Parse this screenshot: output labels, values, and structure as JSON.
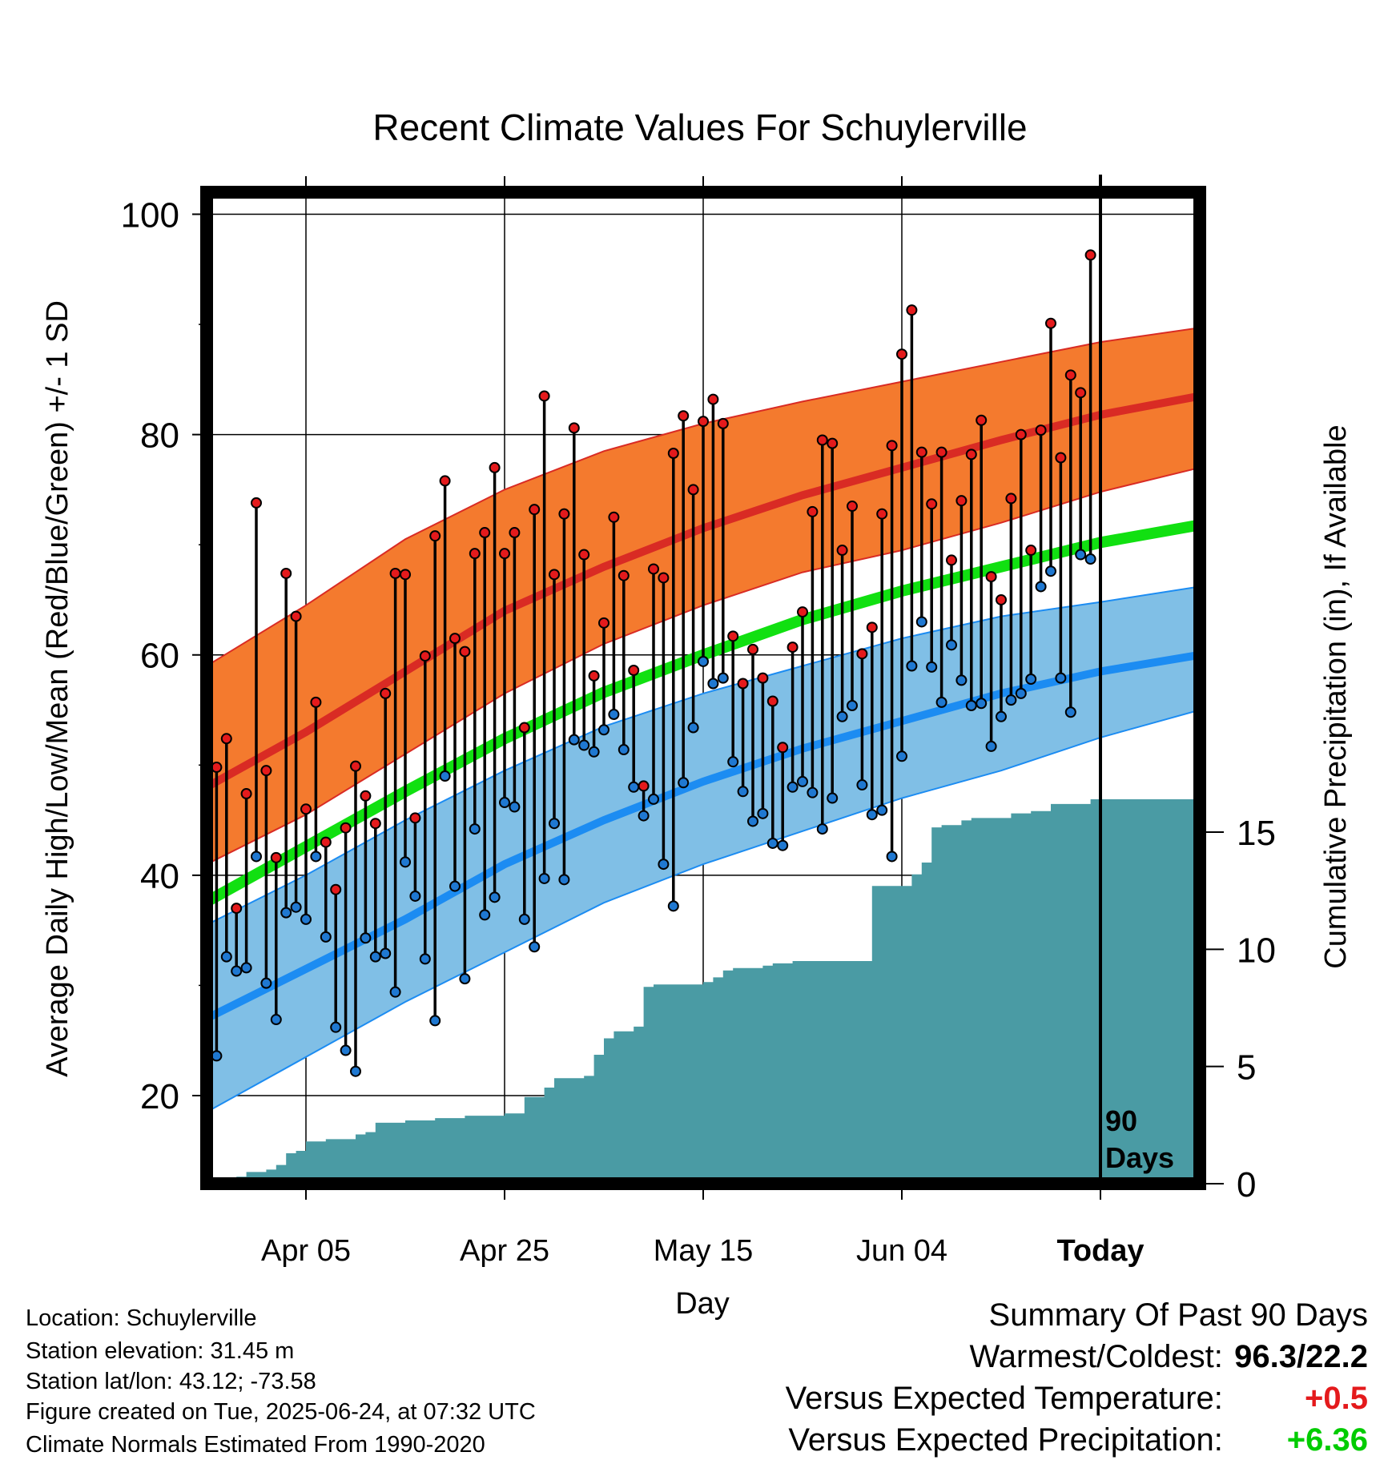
{
  "chart_data": {
    "type": "line",
    "title": "Recent Climate Values For Schuylerville",
    "xlabel": "Day",
    "ylabel": "Average Daily High/Low/Mean (Red/Blue/Green) +/- 1 SD",
    "ylabel_right": "Cumulative Precipitation (in), If Available",
    "x_tick_labels": [
      "Apr 05",
      "Apr 25",
      "May 15",
      "Jun 04",
      "Today"
    ],
    "x_tick_days": [
      10,
      30,
      50,
      70,
      90
    ],
    "xlim": [
      0,
      100
    ],
    "y_tick_labels": [
      "20",
      "40",
      "60",
      "80",
      "100"
    ],
    "y_ticks": [
      20,
      40,
      60,
      80,
      100
    ],
    "ylim": [
      12,
      102
    ],
    "y2_tick_labels": [
      "0",
      "5",
      "10",
      "15"
    ],
    "y2_ticks": [
      0,
      5,
      10,
      15
    ],
    "y2lim": [
      0,
      42.3
    ],
    "today_day": 90,
    "today_label": [
      "90",
      "Days"
    ],
    "grid": true,
    "normals": {
      "day": [
        0,
        10,
        20,
        30,
        40,
        50,
        60,
        70,
        80,
        90,
        100
      ],
      "high_mean": [
        48.0,
        53.0,
        58.5,
        64.0,
        68.0,
        71.5,
        74.5,
        77.0,
        79.5,
        81.8,
        83.5
      ],
      "high_upper": [
        59.0,
        64.5,
        70.5,
        75.0,
        78.5,
        81.0,
        83.0,
        84.8,
        86.6,
        88.4,
        89.7
      ],
      "high_lower": [
        41.0,
        45.5,
        51.0,
        56.5,
        61.0,
        64.5,
        67.5,
        69.5,
        72.0,
        74.8,
        77.0
      ],
      "mean": [
        37.6,
        42.6,
        47.6,
        52.4,
        56.6,
        60.0,
        63.2,
        65.8,
        68.0,
        70.2,
        71.8
      ],
      "low_mean": [
        27.0,
        31.5,
        36.0,
        41.0,
        45.0,
        48.5,
        51.5,
        54.0,
        56.5,
        58.5,
        60.0
      ],
      "low_upper": [
        35.5,
        40.0,
        45.0,
        49.5,
        53.5,
        56.5,
        59.0,
        61.5,
        63.5,
        64.8,
        66.2
      ],
      "low_lower": [
        18.5,
        23.5,
        28.5,
        33.0,
        37.5,
        41.0,
        44.0,
        47.0,
        49.5,
        52.5,
        55.0
      ]
    },
    "series": [
      {
        "name": "High",
        "color": "#e41a1c",
        "day": [
          0,
          1,
          2,
          3,
          4,
          5,
          6,
          7,
          8,
          9,
          10,
          11,
          12,
          13,
          14,
          15,
          16,
          17,
          18,
          19,
          20,
          21,
          22,
          23,
          24,
          25,
          26,
          27,
          28,
          29,
          30,
          31,
          32,
          33,
          34,
          35,
          36,
          37,
          38,
          39,
          40,
          41,
          42,
          43,
          44,
          45,
          46,
          47,
          48,
          49,
          50,
          51,
          52,
          53,
          54,
          55,
          56,
          57,
          58,
          59,
          60,
          61,
          62,
          63,
          64,
          65,
          66,
          67,
          68,
          69,
          70,
          71,
          72,
          73,
          74,
          75,
          76,
          77,
          78,
          79,
          80,
          81,
          82,
          83,
          84,
          85,
          86,
          87,
          88,
          89,
          90
        ],
        "values": [
          47.1,
          49.8,
          52.4,
          37.0,
          47.4,
          73.8,
          49.5,
          41.6,
          67.4,
          63.5,
          46.0,
          55.7,
          43.0,
          38.7,
          44.3,
          49.9,
          47.2,
          44.7,
          56.5,
          67.4,
          67.3,
          45.2,
          59.9,
          70.8,
          75.8,
          61.5,
          60.3,
          69.2,
          71.1,
          77.0,
          69.2,
          71.1,
          53.4,
          73.2,
          83.5,
          67.3,
          72.8,
          80.6,
          69.1,
          58.1,
          62.9,
          72.5,
          67.2,
          58.6,
          48.1,
          67.8,
          67.0,
          78.3,
          81.7,
          75.0,
          81.2,
          83.2,
          81.0,
          61.7,
          57.4,
          60.5,
          57.9,
          55.8,
          51.6,
          60.7,
          63.9,
          73.0,
          79.5,
          79.2,
          69.5,
          73.5,
          60.1,
          62.5,
          72.8,
          79.0,
          87.3,
          91.3,
          78.4,
          73.7,
          78.4,
          68.6,
          74.0,
          78.2,
          81.3,
          67.1,
          65.0,
          74.2,
          80.0,
          69.5,
          80.4,
          90.1,
          77.9,
          85.4,
          83.8,
          96.3,
          null
        ]
      },
      {
        "name": "Low",
        "color": "#1f78d1",
        "day": [
          0,
          1,
          2,
          3,
          4,
          5,
          6,
          7,
          8,
          9,
          10,
          11,
          12,
          13,
          14,
          15,
          16,
          17,
          18,
          19,
          20,
          21,
          22,
          23,
          24,
          25,
          26,
          27,
          28,
          29,
          30,
          31,
          32,
          33,
          34,
          35,
          36,
          37,
          38,
          39,
          40,
          41,
          42,
          43,
          44,
          45,
          46,
          47,
          48,
          49,
          50,
          51,
          52,
          53,
          54,
          55,
          56,
          57,
          58,
          59,
          60,
          61,
          62,
          63,
          64,
          65,
          66,
          67,
          68,
          69,
          70,
          71,
          72,
          73,
          74,
          75,
          76,
          77,
          78,
          79,
          80,
          81,
          82,
          83,
          84,
          85,
          86,
          87,
          88,
          89,
          90
        ],
        "values": [
          24.6,
          23.6,
          32.6,
          31.3,
          31.6,
          41.7,
          30.2,
          26.9,
          36.6,
          37.1,
          36.0,
          41.7,
          34.4,
          26.2,
          24.1,
          22.2,
          34.3,
          32.6,
          32.9,
          29.4,
          41.2,
          38.1,
          32.4,
          26.8,
          49.0,
          39.0,
          30.6,
          44.2,
          36.4,
          38.0,
          46.6,
          46.2,
          36.0,
          33.5,
          39.7,
          44.7,
          39.6,
          52.3,
          51.8,
          51.2,
          53.2,
          54.6,
          51.4,
          48.0,
          45.4,
          46.9,
          41.0,
          37.2,
          48.4,
          53.4,
          59.4,
          57.4,
          57.9,
          50.3,
          47.6,
          44.9,
          45.6,
          42.9,
          42.7,
          48.0,
          48.5,
          47.5,
          44.2,
          47.0,
          54.4,
          55.4,
          48.2,
          45.5,
          45.9,
          41.7,
          50.8,
          59.0,
          63.0,
          58.9,
          55.7,
          60.9,
          57.7,
          55.4,
          55.6,
          51.7,
          54.4,
          55.9,
          56.5,
          57.8,
          66.2,
          67.6,
          57.9,
          54.8,
          69.1,
          68.7,
          null
        ]
      }
    ],
    "precipitation": {
      "name": "Cumulative Precipitation",
      "color": "#4a9ba4",
      "day": [
        0,
        1,
        2,
        3,
        4,
        5,
        6,
        7,
        8,
        9,
        10,
        11,
        12,
        13,
        14,
        15,
        16,
        17,
        18,
        19,
        20,
        21,
        22,
        23,
        24,
        25,
        26,
        27,
        28,
        29,
        30,
        31,
        32,
        33,
        34,
        35,
        36,
        37,
        38,
        39,
        40,
        41,
        42,
        43,
        44,
        45,
        46,
        47,
        48,
        49,
        50,
        51,
        52,
        53,
        54,
        55,
        56,
        57,
        58,
        59,
        60,
        61,
        62,
        63,
        64,
        65,
        66,
        67,
        68,
        69,
        70,
        71,
        72,
        73,
        74,
        75,
        76,
        77,
        78,
        79,
        80,
        81,
        82,
        83,
        84,
        85,
        86,
        87,
        88,
        89,
        90,
        100
      ],
      "values": [
        0,
        0,
        0,
        0.3,
        0.5,
        0.5,
        0.6,
        0.8,
        1.3,
        1.4,
        1.8,
        1.8,
        1.9,
        1.9,
        1.9,
        2.1,
        2.2,
        2.6,
        2.6,
        2.6,
        2.7,
        2.7,
        2.7,
        2.8,
        2.8,
        2.8,
        2.9,
        2.9,
        2.9,
        2.9,
        3.0,
        3.0,
        3.7,
        3.7,
        4.1,
        4.5,
        4.5,
        4.5,
        4.6,
        5.5,
        6.2,
        6.5,
        6.5,
        6.7,
        8.4,
        8.5,
        8.5,
        8.5,
        8.5,
        8.5,
        8.6,
        8.8,
        9.1,
        9.2,
        9.2,
        9.2,
        9.3,
        9.4,
        9.4,
        9.5,
        9.5,
        9.5,
        9.5,
        9.5,
        9.5,
        9.5,
        9.5,
        12.7,
        12.7,
        12.7,
        12.7,
        13.2,
        13.7,
        15.2,
        15.3,
        15.3,
        15.5,
        15.6,
        15.6,
        15.6,
        15.6,
        15.8,
        15.8,
        15.9,
        15.9,
        16.2,
        16.2,
        16.2,
        16.2,
        16.4,
        16.4,
        16.4
      ]
    }
  },
  "footer": {
    "location": "Location: Schuylerville",
    "elevation": "Station elevation: 31.45 m",
    "latlon": "Station lat/lon: 43.12; -73.58",
    "created": "Figure created on Tue, 2025-06-24, at 07:32 UTC",
    "normals": "Climate Normals Estimated From 1990-2020"
  },
  "summary": {
    "title": "Summary Of Past 90 Days",
    "warm_cold_label": "Warmest/Coldest:",
    "warm_cold_value": "96.3/22.2",
    "temp_label": "Versus Expected Temperature:",
    "temp_value": "+0.5",
    "temp_color": "#e41a1c",
    "precip_label": "Versus Expected Precipitation:",
    "precip_value": "+6.36",
    "precip_color": "#00cc00"
  },
  "colors": {
    "high_band": "#f47a2e",
    "high_line": "#d92b24",
    "low_band": "#80bfe6",
    "low_line": "#1c8cf2",
    "mean_line": "#11e011",
    "precip_fill": "#4a9ba4"
  }
}
